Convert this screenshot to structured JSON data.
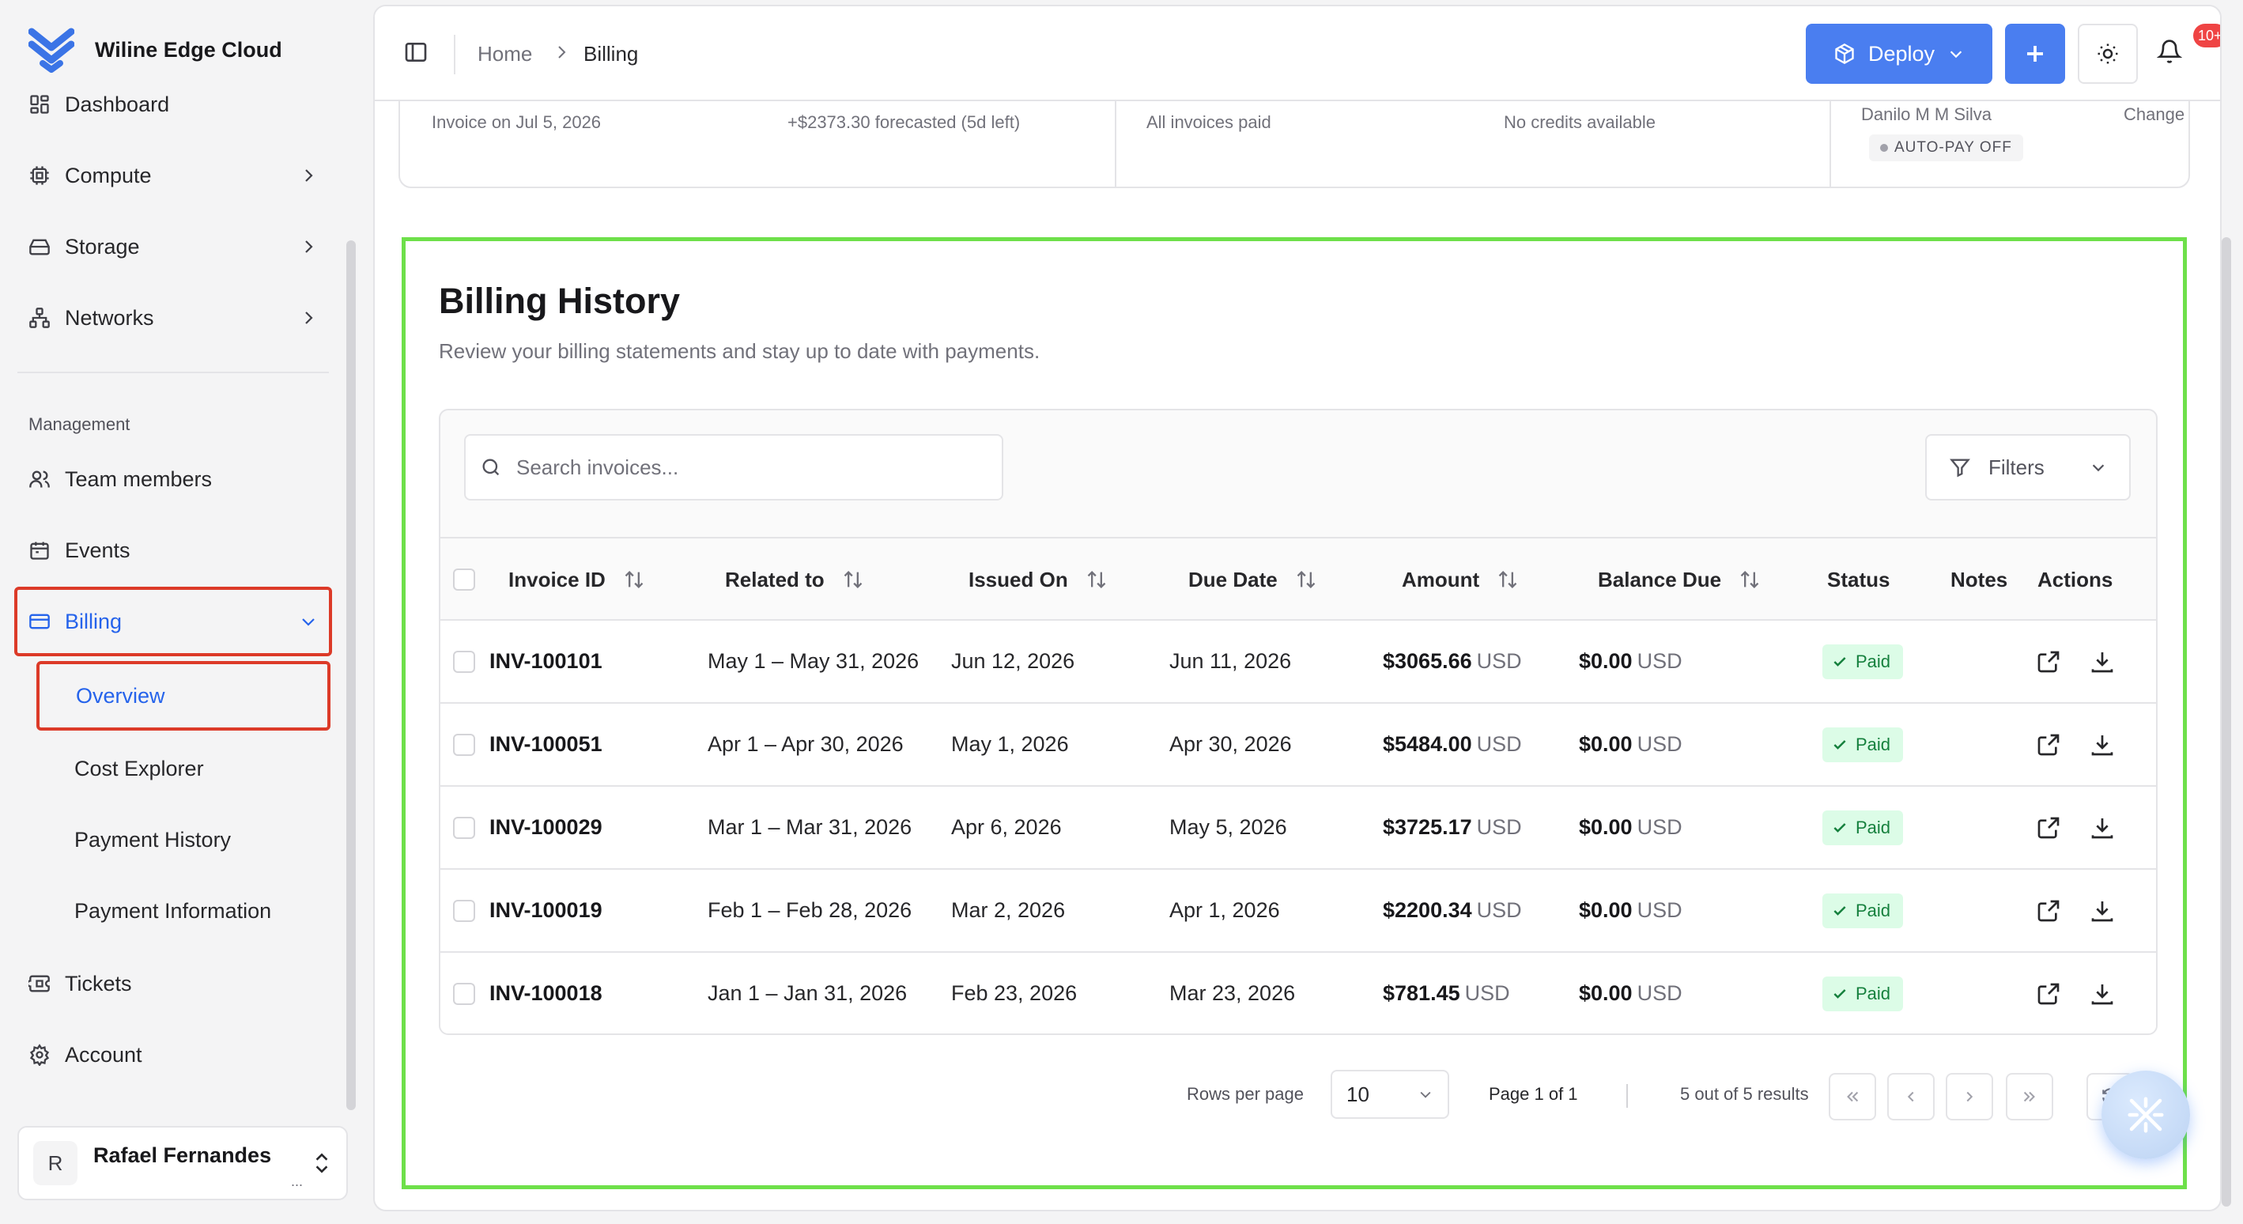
{
  "app": {
    "name": "Wiline Edge Cloud"
  },
  "sidebar": {
    "items": [
      {
        "label": "Dashboard"
      },
      {
        "label": "Compute"
      },
      {
        "label": "Storage"
      },
      {
        "label": "Networks"
      }
    ],
    "management_label": "Management",
    "management_items": [
      {
        "label": "Team members"
      },
      {
        "label": "Events"
      },
      {
        "label": "Billing"
      }
    ],
    "billing_sub": [
      {
        "label": "Overview"
      },
      {
        "label": "Cost Explorer"
      },
      {
        "label": "Payment History"
      },
      {
        "label": "Payment Information"
      }
    ],
    "bottom_items": [
      {
        "label": "Tickets"
      },
      {
        "label": "Account"
      }
    ],
    "user": {
      "initial": "R",
      "name": "Rafael Fernandes",
      "sub": "..."
    }
  },
  "topbar": {
    "breadcrumb": [
      "Home",
      "Billing"
    ],
    "deploy_label": "Deploy",
    "notification_count": "10+"
  },
  "summary": {
    "invoice_date": "Invoice on Jul 5, 2026",
    "forecast": "+$2373.30 forecasted (5d left)",
    "invoices_status": "All invoices paid",
    "credits": "No credits available",
    "payer": "Danilo M M Silva",
    "change_label": "Change",
    "autopay": "AUTO-PAY OFF"
  },
  "history": {
    "title": "Billing History",
    "subtitle": "Review your billing statements and stay up to date with payments.",
    "search_placeholder": "Search invoices...",
    "filters_label": "Filters",
    "columns": [
      "Invoice ID",
      "Related to",
      "Issued On",
      "Due Date",
      "Amount",
      "Balance Due",
      "Status",
      "Notes",
      "Actions"
    ],
    "rows": [
      {
        "id": "INV-100101",
        "related": "May 1 – May 31, 2026",
        "issued": "Jun 12, 2026",
        "due": "Jun 11, 2026",
        "amount": "$3065.66",
        "balance": "$0.00",
        "currency": "USD",
        "status": "Paid"
      },
      {
        "id": "INV-100051",
        "related": "Apr 1 – Apr 30, 2026",
        "issued": "May 1, 2026",
        "due": "Apr 30, 2026",
        "amount": "$5484.00",
        "balance": "$0.00",
        "currency": "USD",
        "status": "Paid"
      },
      {
        "id": "INV-100029",
        "related": "Mar 1 – Mar 31, 2026",
        "issued": "Apr 6, 2026",
        "due": "May 5, 2026",
        "amount": "$3725.17",
        "balance": "$0.00",
        "currency": "USD",
        "status": "Paid"
      },
      {
        "id": "INV-100019",
        "related": "Feb 1 – Feb 28, 2026",
        "issued": "Mar 2, 2026",
        "due": "Apr 1, 2026",
        "amount": "$2200.34",
        "balance": "$0.00",
        "currency": "USD",
        "status": "Paid"
      },
      {
        "id": "INV-100018",
        "related": "Jan 1 – Jan 31, 2026",
        "issued": "Feb 23, 2026",
        "due": "Mar 23, 2026",
        "amount": "$781.45",
        "balance": "$0.00",
        "currency": "USD",
        "status": "Paid"
      }
    ],
    "pagination": {
      "rows_per_page_label": "Rows per page",
      "rows_per_page": "10",
      "page_text": "Page 1 of 1",
      "results_text": "5 out of 5 results"
    }
  },
  "colors": {
    "accent": "#4a7ef0",
    "paid_bg": "#dcfce7",
    "paid_fg": "#15803d",
    "highlight_green": "#6ee04a",
    "highlight_red": "#dc3a28"
  }
}
